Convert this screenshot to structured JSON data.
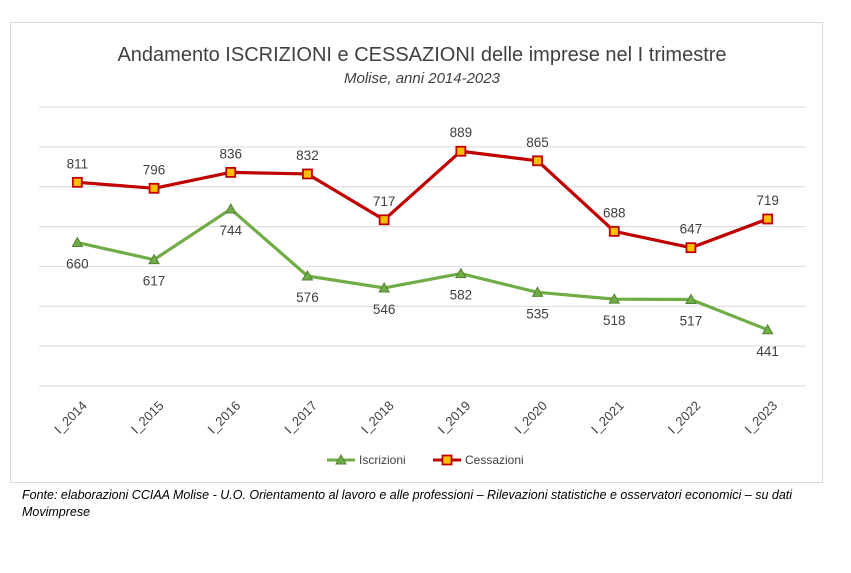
{
  "chart_data": {
    "type": "line",
    "title": "Andamento ISCRIZIONI e CESSAZIONI delle imprese nel I trimestre",
    "subtitle": "Molise, anni 2014-2023",
    "categories": [
      "I_2014",
      "I_2015",
      "I_2016",
      "I_2017",
      "I_2018",
      "I_2019",
      "I_2020",
      "I_2021",
      "I_2022",
      "I_2023"
    ],
    "series": [
      {
        "name": "Iscrizioni",
        "color": "#70ad47",
        "marker": "triangle",
        "values": [
          660,
          617,
          744,
          576,
          546,
          582,
          535,
          518,
          517,
          441
        ]
      },
      {
        "name": "Cessazioni",
        "color": "#c00000",
        "marker": "square",
        "values": [
          811,
          796,
          836,
          832,
          717,
          889,
          865,
          688,
          647,
          719
        ]
      }
    ],
    "ylim": [
      300,
      1000
    ],
    "grid": true,
    "y_axis_labels_visible": false,
    "legend_position": "bottom"
  },
  "source_note": "Fonte: elaborazioni CCIAA Molise - U.O. Orientamento al lavoro e alle professioni – Rilevazioni statistiche e osservatori economici – su dati Movimprese"
}
